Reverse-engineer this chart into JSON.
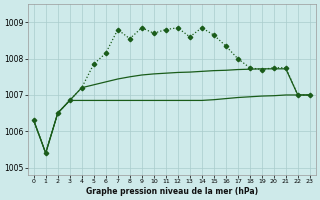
{
  "title": "Graphe pression niveau de la mer (hPa)",
  "bg_color": "#ceeaea",
  "grid_color": "#aacccc",
  "line_color": "#1a5c1a",
  "ylim": [
    1004.8,
    1009.5
  ],
  "yticks": [
    1005,
    1006,
    1007,
    1008,
    1009
  ],
  "xlim": [
    -0.5,
    23.5
  ],
  "xticks": [
    0,
    1,
    2,
    3,
    4,
    5,
    6,
    7,
    8,
    9,
    10,
    11,
    12,
    13,
    14,
    15,
    16,
    17,
    18,
    19,
    20,
    21,
    22,
    23
  ],
  "curve1_x": [
    0,
    1,
    2,
    3,
    4,
    5,
    6,
    7,
    8,
    9,
    10,
    11,
    12,
    13,
    14,
    15,
    16,
    17,
    18,
    19,
    20,
    21,
    22,
    23
  ],
  "curve1_y": [
    1006.3,
    1005.4,
    1006.5,
    1006.85,
    1007.2,
    1007.85,
    1008.15,
    1008.8,
    1008.55,
    1008.85,
    1008.7,
    1008.8,
    1008.85,
    1008.6,
    1008.85,
    1008.65,
    1008.35,
    1008.0,
    1007.75,
    1007.7,
    1007.75,
    1007.75,
    1007.0,
    1007.0
  ],
  "curve2_x": [
    0,
    1,
    2,
    3,
    4,
    5,
    6,
    7,
    8,
    9,
    10,
    11,
    12,
    13,
    14,
    15,
    16,
    17,
    18,
    19,
    20,
    21,
    22,
    23
  ],
  "curve2_y": [
    1006.3,
    1005.4,
    1006.5,
    1006.85,
    1007.2,
    1007.28,
    1007.36,
    1007.44,
    1007.5,
    1007.55,
    1007.58,
    1007.6,
    1007.62,
    1007.63,
    1007.65,
    1007.67,
    1007.68,
    1007.7,
    1007.71,
    1007.72,
    1007.72,
    1007.72,
    1007.0,
    1007.0
  ],
  "curve3_x": [
    0,
    1,
    2,
    3,
    4,
    5,
    6,
    7,
    8,
    9,
    10,
    11,
    12,
    13,
    14,
    15,
    16,
    17,
    18,
    19,
    20,
    21,
    22,
    23
  ],
  "curve3_y": [
    1006.3,
    1005.4,
    1006.5,
    1006.85,
    1006.85,
    1006.85,
    1006.85,
    1006.85,
    1006.85,
    1006.85,
    1006.85,
    1006.85,
    1006.85,
    1006.85,
    1006.85,
    1006.87,
    1006.9,
    1006.93,
    1006.95,
    1006.97,
    1006.98,
    1007.0,
    1007.0,
    1007.0
  ]
}
